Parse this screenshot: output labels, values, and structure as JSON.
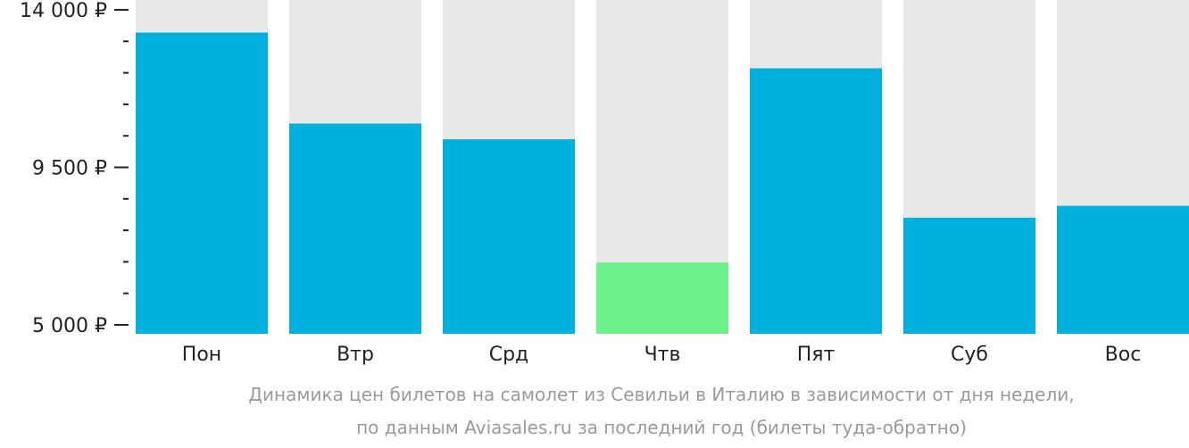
{
  "chart_data": {
    "type": "bar",
    "categories": [
      "Пон",
      "Втр",
      "Срд",
      "Чтв",
      "Пят",
      "Суб",
      "Вос"
    ],
    "values": [
      13350,
      10750,
      10300,
      6780,
      12330,
      8060,
      8400
    ],
    "highlight_index": 3,
    "ylim": [
      5000,
      14000
    ],
    "yticks_major": [
      {
        "value": 14000,
        "label": "14 000 ₽"
      },
      {
        "value": 9500,
        "label": "9 500 ₽"
      },
      {
        "value": 5000,
        "label": "5 000 ₽"
      }
    ],
    "yticks_minor_step": 900,
    "grid": false,
    "colors": {
      "bar": "#00b0dd",
      "highlight": "#6cf28a",
      "background_track": "#e8e8e8",
      "axis_text": "#222222",
      "caption_text": "#9a9a9a"
    }
  },
  "caption": {
    "line1": "Динамика цен билетов на самолет из Севильи в Италию в зависимости от дня недели,",
    "line2": "по данным Aviasales.ru за последний год (билеты туда-обратно)"
  }
}
